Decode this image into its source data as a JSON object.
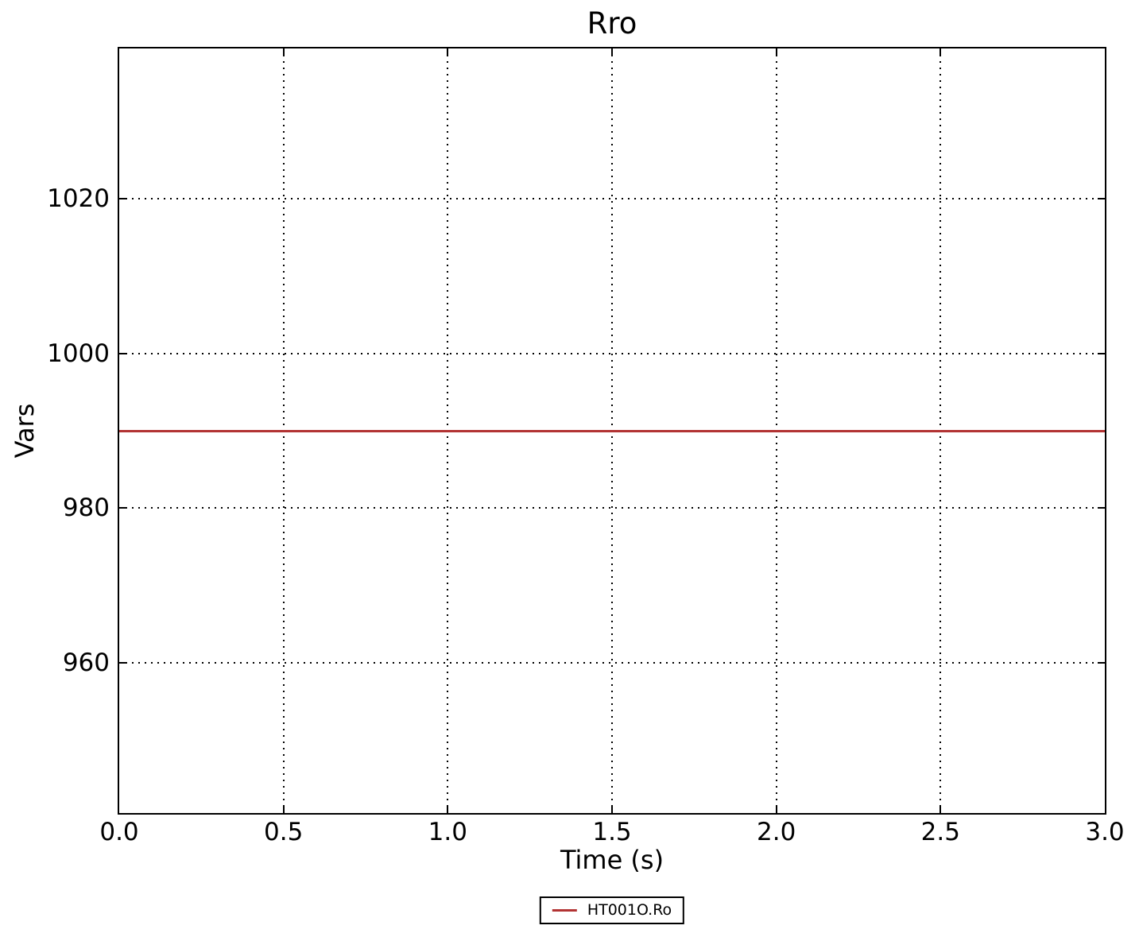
{
  "chart_data": {
    "type": "line",
    "title": "Rro",
    "xlabel": "Time (s)",
    "ylabel": "Vars",
    "xlim": [
      0.0,
      3.0
    ],
    "ylim": [
      940.5,
      1039.5
    ],
    "xticks": [
      {
        "v": 0.0,
        "label": "0.0"
      },
      {
        "v": 0.5,
        "label": "0.5"
      },
      {
        "v": 1.0,
        "label": "1.0"
      },
      {
        "v": 1.5,
        "label": "1.5"
      },
      {
        "v": 2.0,
        "label": "2.0"
      },
      {
        "v": 2.5,
        "label": "2.5"
      },
      {
        "v": 3.0,
        "label": "3.0"
      }
    ],
    "yticks": [
      {
        "v": 960,
        "label": "960"
      },
      {
        "v": 980,
        "label": "980"
      },
      {
        "v": 1000,
        "label": "1000"
      },
      {
        "v": 1020,
        "label": "1020"
      }
    ],
    "grid": {
      "visible": true,
      "style": "dotted",
      "color": "#000000"
    },
    "legend": {
      "position": "bottom-center-outside",
      "entries": [
        "HT001O.Ro"
      ]
    },
    "series": [
      {
        "name": "HT001O.Ro",
        "color": "#b23333",
        "x": [
          0.0,
          3.0
        ],
        "y": [
          990,
          990
        ]
      }
    ]
  }
}
